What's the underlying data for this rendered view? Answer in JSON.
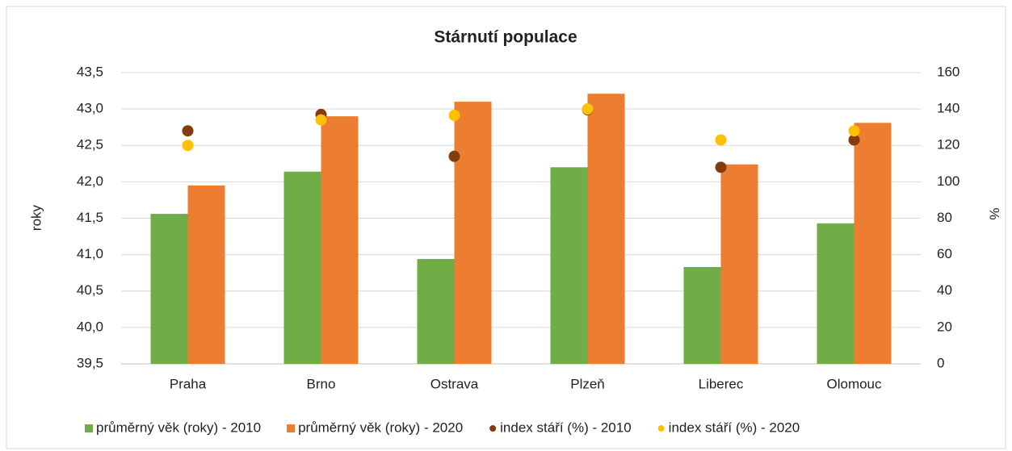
{
  "chart_data": {
    "type": "bar",
    "title": "Stárnutí populace",
    "ylabel": "roky",
    "y2label": "%",
    "categories": [
      "Praha",
      "Brno",
      "Ostrava",
      "Plzeň",
      "Liberec",
      "Olomouc"
    ],
    "series": [
      {
        "name": "průměrný věk (roky) - 2010",
        "color": "#70ad47",
        "type": "bar",
        "values": [
          41.56,
          42.14,
          40.94,
          42.2,
          40.83,
          41.43
        ]
      },
      {
        "name": "průměrný věk (roky) - 2020",
        "color": "#ed7d31",
        "type": "bar",
        "values": [
          41.95,
          42.9,
          43.1,
          43.21,
          42.24,
          42.81
        ]
      },
      {
        "name": "index stáří (%) - 2010",
        "color": "#843c0c",
        "type": "scatter",
        "axis": "y2",
        "values": [
          128,
          137,
          114,
          139.6,
          108,
          123
        ]
      },
      {
        "name": "index stáří (%) - 2020",
        "color": "#ffc000",
        "type": "scatter",
        "axis": "y2",
        "values": [
          120,
          134,
          136.5,
          140,
          123,
          128
        ]
      }
    ],
    "ylim": [
      39.5,
      43.5
    ],
    "yticks": [
      {
        "value": 39.5,
        "label": "39,5"
      },
      {
        "value": 40,
        "label": "40,0"
      },
      {
        "value": 40.5,
        "label": "40,5"
      },
      {
        "value": 41,
        "label": "41,0"
      },
      {
        "value": 41.5,
        "label": "41,5"
      },
      {
        "value": 42,
        "label": "42,0"
      },
      {
        "value": 42.5,
        "label": "42,5"
      },
      {
        "value": 43,
        "label": "43,0"
      },
      {
        "value": 43.5,
        "label": "43,5"
      }
    ],
    "y2lim": [
      0,
      160
    ],
    "y2ticks": [
      0,
      20,
      40,
      60,
      80,
      100,
      120,
      140,
      160
    ],
    "grid": true,
    "legend": "bottom"
  }
}
